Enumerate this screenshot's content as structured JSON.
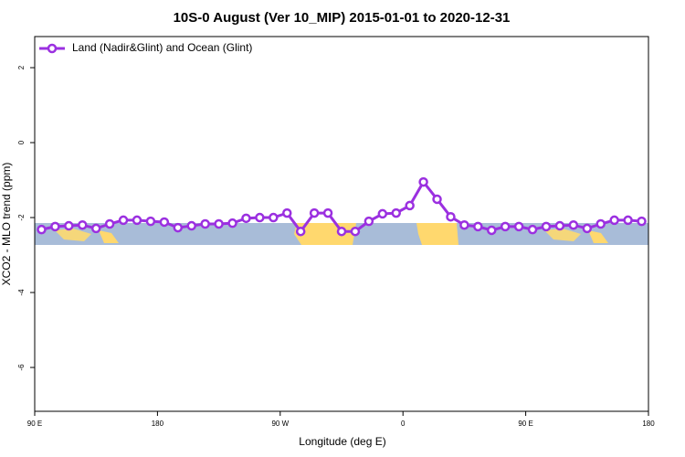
{
  "chart_data": {
    "type": "line",
    "title": "10S-0 August (Ver 10_MIP)   2015-01-01 to 2020-12-31",
    "x_label": "Longitude (deg E)",
    "y_label": "XCO2 - MLO trend (ppm)",
    "x": [
      95,
      105,
      115,
      125,
      135,
      145,
      155,
      165,
      175,
      185,
      195,
      205,
      215,
      225,
      235,
      245,
      255,
      265,
      275,
      285,
      295,
      305,
      315,
      325,
      335,
      345,
      355,
      365,
      375,
      385,
      395,
      405,
      415,
      425,
      435,
      445,
      455,
      465,
      475,
      485,
      495,
      505,
      515,
      525,
      535
    ],
    "series": [
      {
        "name": "Land (Nadir&Glint) and Ocean (Glint)",
        "color": "#9b30e0",
        "values": [
          -2.32,
          -2.24,
          -2.22,
          -2.2,
          -2.29,
          -2.17,
          -2.07,
          -2.07,
          -2.1,
          -2.12,
          -2.27,
          -2.22,
          -2.17,
          -2.17,
          -2.15,
          -2.02,
          -2.0,
          -2.0,
          -1.88,
          -2.37,
          -1.88,
          -1.88,
          -2.37,
          -2.37,
          -2.1,
          -1.9,
          -1.88,
          -1.68,
          -1.05,
          -1.51,
          -1.98,
          -2.2,
          -2.24,
          -2.34,
          -2.24,
          -2.24,
          -2.32,
          -2.24,
          -2.22,
          -2.2,
          -2.29,
          -2.17,
          -2.07,
          -2.07,
          -2.1
        ]
      }
    ],
    "xlim": [
      90,
      540
    ],
    "xticks": [
      {
        "value": 90,
        "label": "90 E"
      },
      180,
      {
        "value": 270,
        "label": "90 W"
      },
      {
        "value": 360,
        "label": "0"
      },
      {
        "value": 450,
        "label": "90 E"
      },
      {
        "value": 540,
        "label": "180"
      }
    ],
    "ylim": [
      -7.17,
      2.83
    ],
    "yticks": [
      2,
      0,
      -2,
      -4,
      -6
    ],
    "legend": "top-left"
  }
}
